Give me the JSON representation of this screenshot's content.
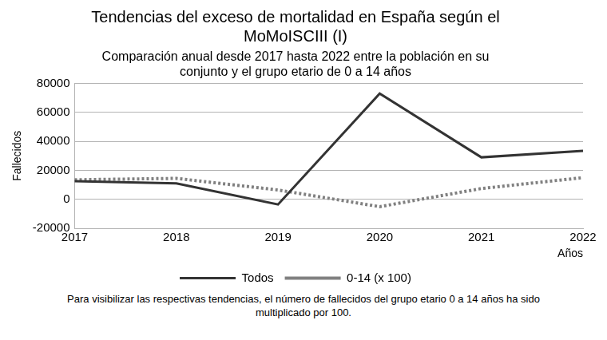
{
  "chart_data": {
    "type": "line",
    "title": [
      "Tendencias del exceso de mortalidad en España según el",
      "MoMoISCIII (I)"
    ],
    "subtitle": [
      "Comparación anual desde 2017 hasta 2022 entre la población en su",
      "conjunto y el grupo etario de 0 a 14 años"
    ],
    "y_label": "Fallecidos",
    "x_label": "Años",
    "note": "Para visibilizar las respectivas tendencias, el número de fallecidos del grupo etario 0 a 14 años ha sido multiplicado por 100.",
    "categories": [
      "2017",
      "2018",
      "2019",
      "2020",
      "2021",
      "2022"
    ],
    "series": [
      {
        "name": "Todos",
        "color": "#333333",
        "line_style": "solid",
        "values": [
          12500,
          11000,
          -3500,
          73000,
          29000,
          33500
        ]
      },
      {
        "name": "0-14 (x 100)",
        "color": "#808080",
        "line_style": "dotted",
        "values": [
          13500,
          14500,
          6500,
          -5000,
          7500,
          15000
        ]
      }
    ],
    "ylim": [
      -20000,
      80000
    ],
    "yticks": [
      -20000,
      0,
      20000,
      40000,
      60000,
      80000
    ],
    "grid": true,
    "legend": "bottom"
  }
}
